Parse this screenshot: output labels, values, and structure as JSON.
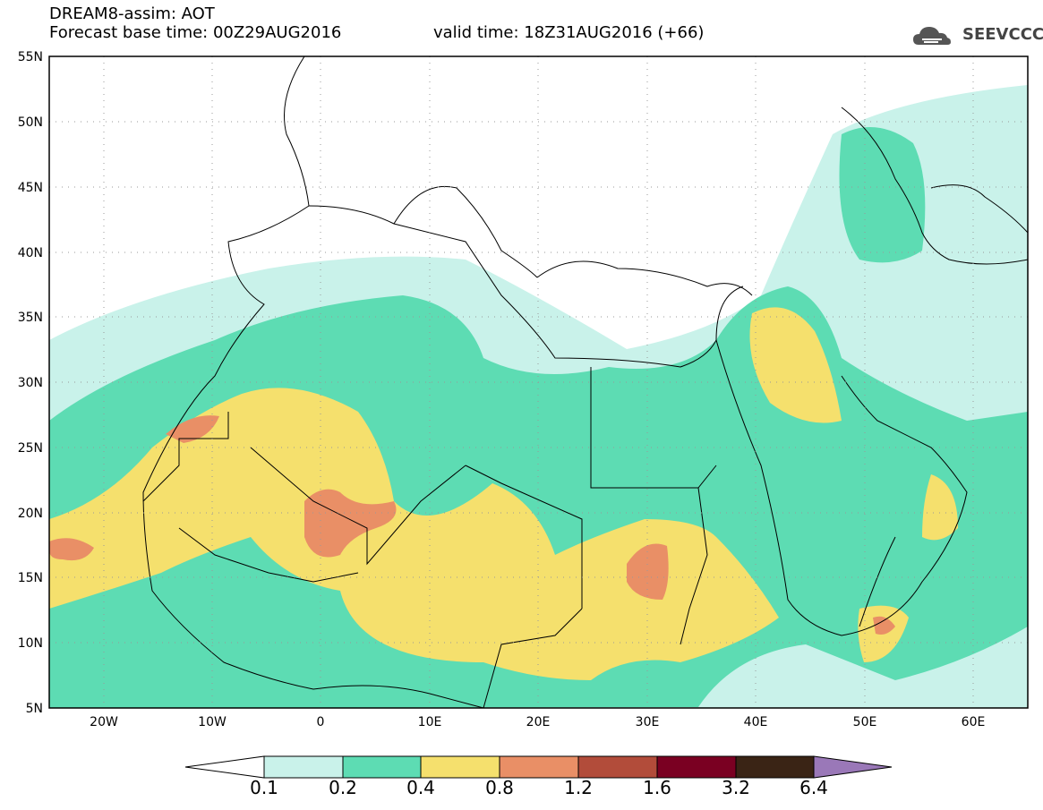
{
  "header": {
    "model_line": "DREAM8-assim: AOT",
    "base_time": "Forecast base time: 00Z29AUG2016",
    "valid_time": "valid time: 18Z31AUG2016 (+66)"
  },
  "logo": {
    "text": "SEEVCCC",
    "icon": "cloud-logo-icon"
  },
  "map": {
    "region": {
      "lon_min": -25,
      "lon_max": 65,
      "lat_min": 5,
      "lat_max": 55
    },
    "lat_labels": [
      "55N",
      "50N",
      "45N",
      "40N",
      "35N",
      "30N",
      "25N",
      "20N",
      "15N",
      "10N",
      "5N"
    ],
    "lon_labels": [
      "20W",
      "10W",
      "0",
      "10E",
      "20E",
      "30E",
      "40E",
      "50E",
      "60E"
    ],
    "grid": "dotted"
  },
  "colorbar": {
    "labels": [
      "0.1",
      "0.2",
      "0.4",
      "0.8",
      "1.2",
      "1.6",
      "3.2",
      "6.4"
    ],
    "colors": [
      "#c9f2ea",
      "#5ddcb3",
      "#f5e06d",
      "#e98f66",
      "#b24c3a",
      "#7a0022",
      "#3a2415",
      "#9a78b8"
    ],
    "under_color": "#ffffff",
    "over_color": "#9a78b8"
  }
}
